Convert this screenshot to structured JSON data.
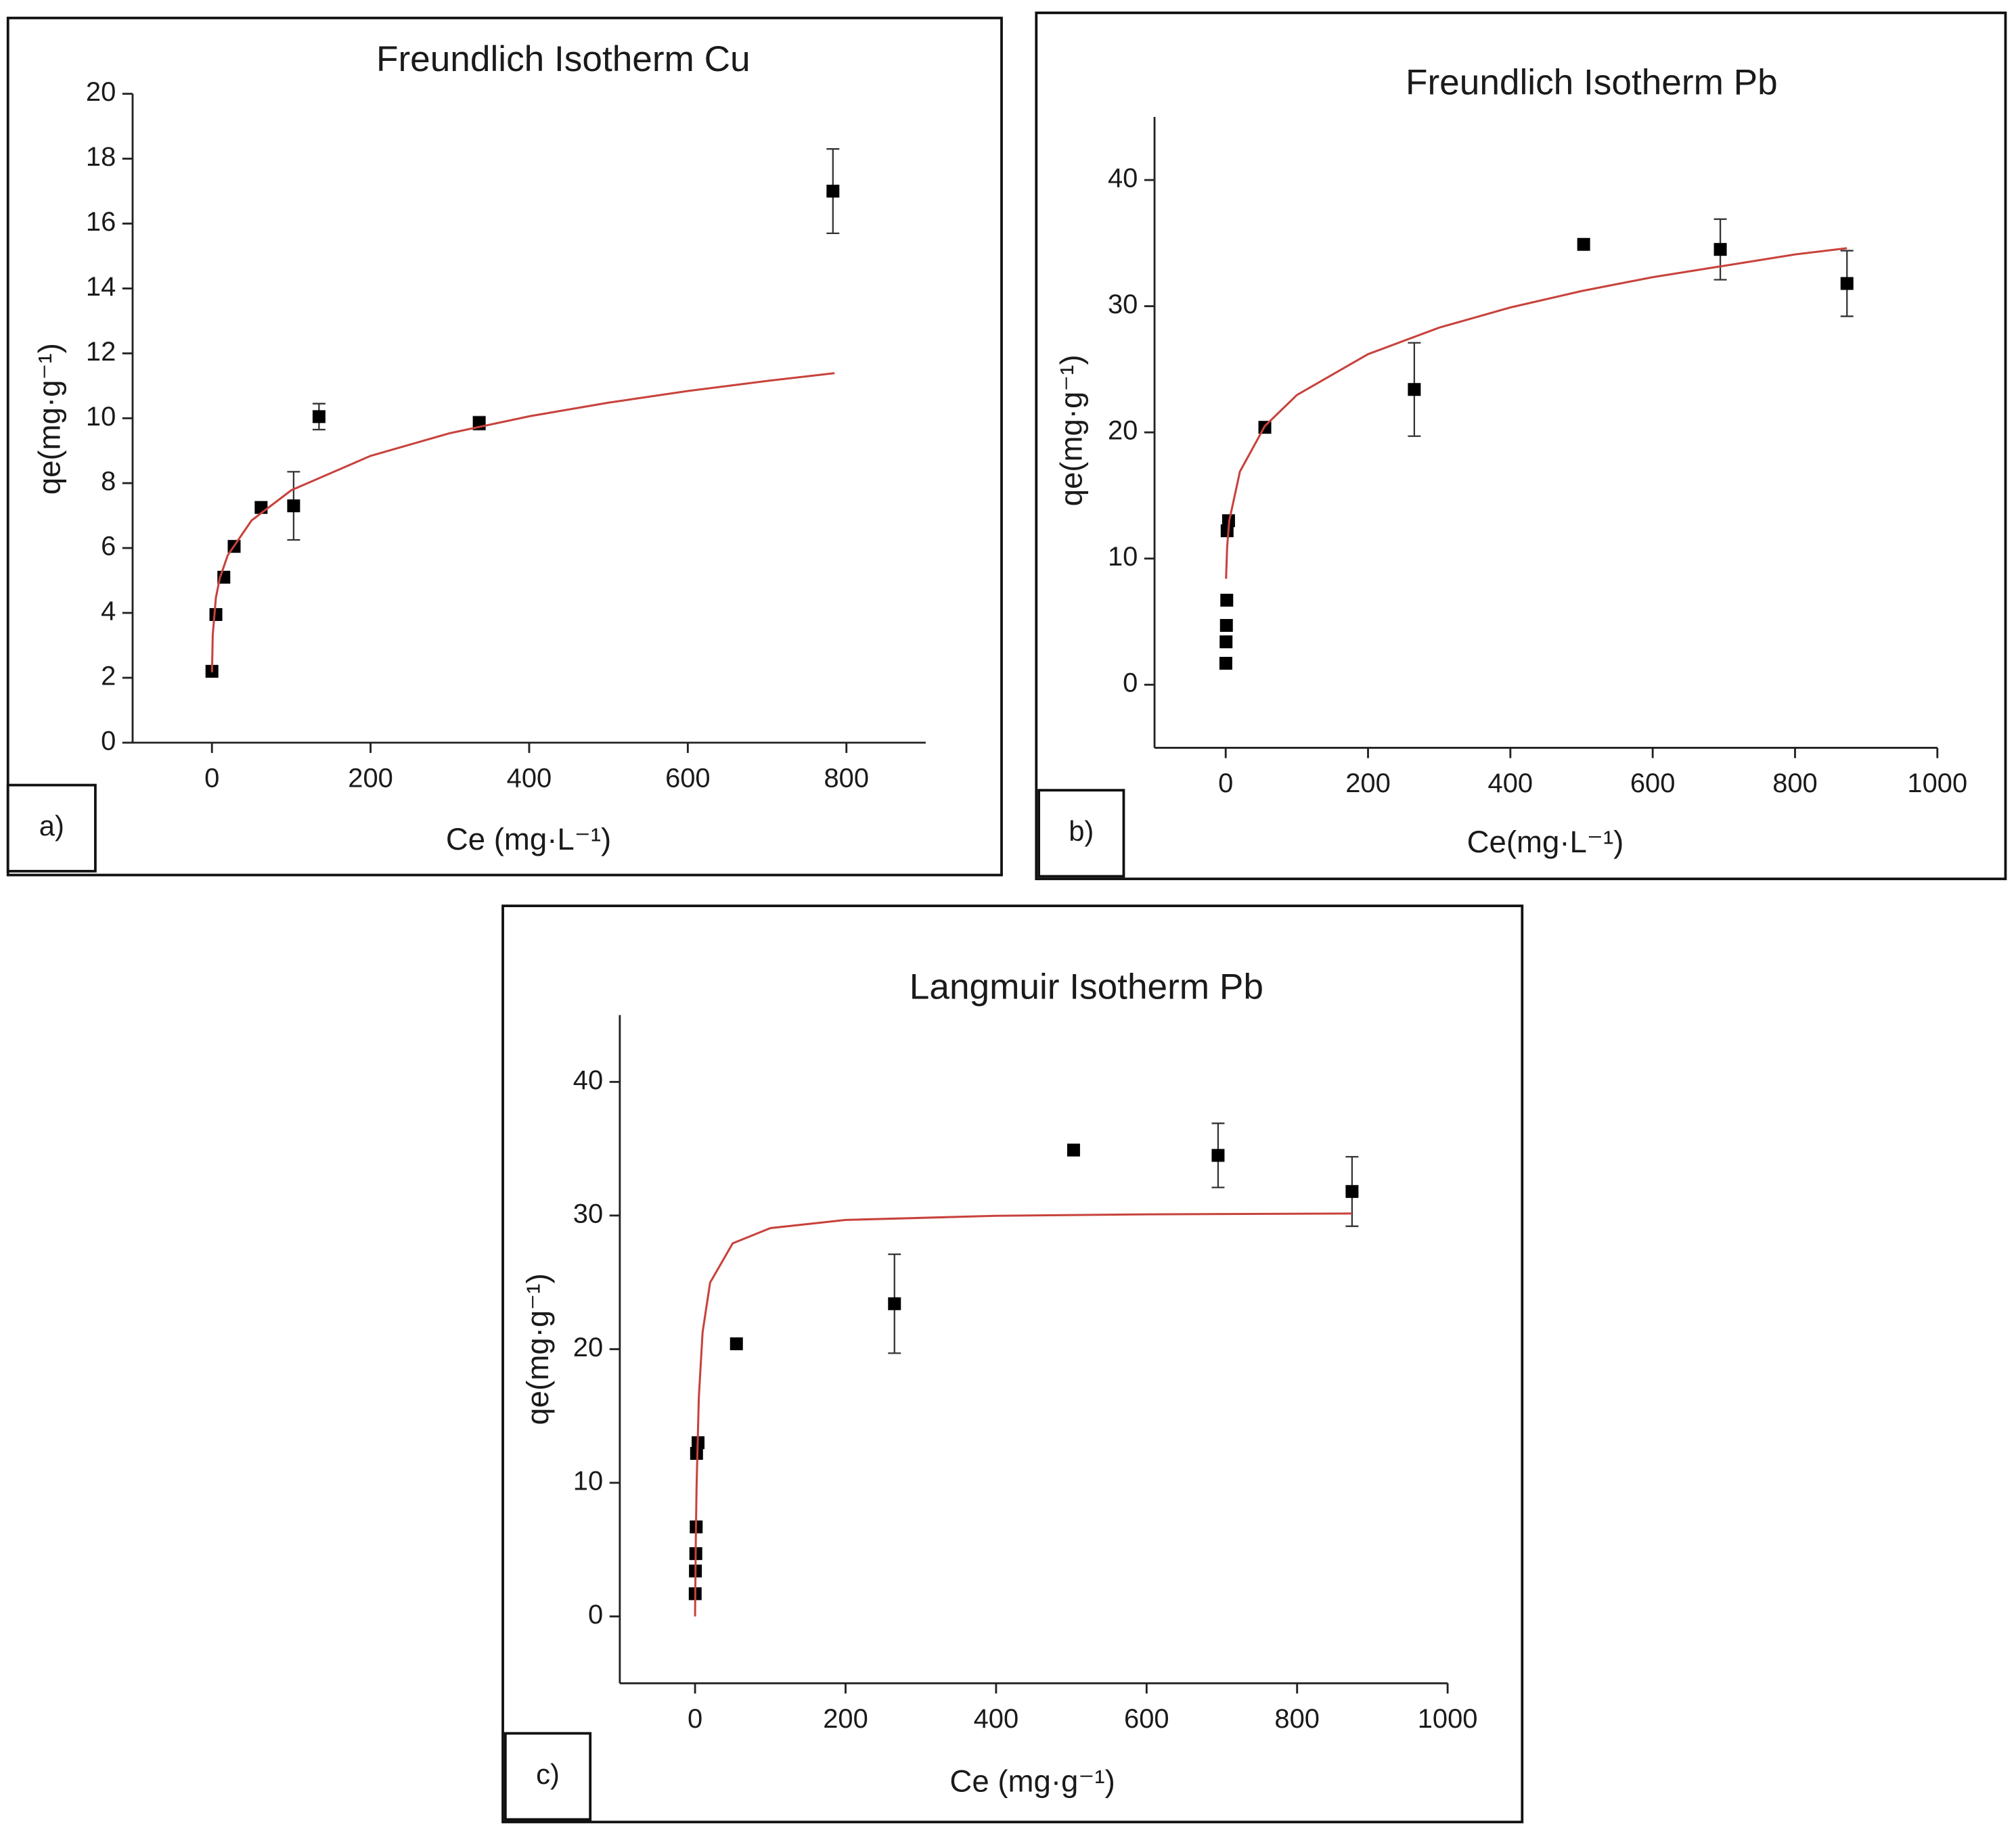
{
  "chart_data": [
    {
      "type": "scatter",
      "title": "Freundlich Isotherm Cu",
      "panel_label": "a)",
      "xlabel": "Ce (mg·L⁻¹)",
      "ylabel": "qe(mg·g⁻¹)",
      "xlim": [
        -100,
        900
      ],
      "ylim": [
        0,
        20
      ],
      "xticks": [
        0,
        200,
        400,
        600,
        800
      ],
      "yticks": [
        0,
        2,
        4,
        6,
        8,
        10,
        12,
        14,
        16,
        18,
        20
      ],
      "series": [
        {
          "color": "#000000",
          "x": [
            0,
            5,
            15,
            28,
            62,
            103,
            135,
            337,
            783
          ],
          "values": [
            2.2,
            3.95,
            5.1,
            6.05,
            7.25,
            7.3,
            10.05,
            9.85,
            17
          ],
          "errors": [
            null,
            null,
            null,
            null,
            null,
            1.05,
            0.4,
            0.2,
            1.3
          ]
        },
        {
          "type": "line",
          "color": "#c8423c",
          "x": [
            0.1,
            1,
            5,
            10,
            20,
            50,
            100,
            200,
            300,
            400,
            500,
            600,
            700,
            785
          ],
          "values": [
            2.17,
            3.32,
            4.47,
            5.08,
            5.78,
            6.85,
            7.78,
            8.84,
            9.54,
            10.06,
            10.48,
            10.84,
            11.15,
            11.39
          ]
        }
      ]
    },
    {
      "type": "scatter",
      "title": "Freundlich Isotherm Pb",
      "panel_label": "b)",
      "xlabel": "Ce(mg·L⁻¹)",
      "ylabel": "qe(mg·g⁻¹)",
      "xlim": [
        -100,
        1000
      ],
      "ylim": [
        -5,
        45
      ],
      "xticks": [
        0,
        200,
        400,
        600,
        800,
        1000
      ],
      "yticks": [
        0,
        10,
        20,
        30,
        40
      ],
      "series": [
        {
          "color": "#000000",
          "x": [
            0.2,
            0.5,
            1,
            1.5,
            2,
            4,
            55,
            265,
            503,
            695,
            873
          ],
          "values": [
            1.7,
            3.4,
            4.7,
            6.7,
            12.2,
            13,
            20.4,
            23.4,
            34.9,
            34.5,
            31.8
          ],
          "errors": [
            null,
            null,
            null,
            null,
            null,
            null,
            null,
            3.7,
            null,
            2.4,
            2.6
          ]
        },
        {
          "type": "line",
          "color": "#c8423c",
          "x": [
            0.5,
            2,
            5,
            20,
            55,
            100,
            200,
            300,
            400,
            500,
            600,
            700,
            800,
            873
          ],
          "values": [
            8.4,
            10.9,
            13,
            16.9,
            20.5,
            22.96,
            26.2,
            28.3,
            29.9,
            31.2,
            32.3,
            33.2,
            34.1,
            34.6
          ]
        }
      ]
    },
    {
      "type": "scatter",
      "title": "Langmuir Isotherm Pb",
      "panel_label": "c)",
      "xlabel": "Ce (mg·g⁻¹)",
      "ylabel": "qe(mg·g⁻¹)",
      "xlim": [
        -100,
        1000
      ],
      "ylim": [
        -5,
        45
      ],
      "xticks": [
        0,
        200,
        400,
        600,
        800,
        1000
      ],
      "yticks": [
        0,
        10,
        20,
        30,
        40
      ],
      "series": [
        {
          "color": "#000000",
          "x": [
            0.2,
            0.5,
            1,
            1.5,
            2,
            4,
            55,
            265,
            503,
            695,
            873
          ],
          "values": [
            1.7,
            3.4,
            4.7,
            6.7,
            12.2,
            13,
            20.4,
            23.4,
            34.9,
            34.5,
            31.8
          ],
          "errors": [
            null,
            null,
            null,
            null,
            null,
            null,
            null,
            3.7,
            null,
            2.4,
            2.6
          ]
        },
        {
          "type": "line",
          "color": "#c8423c",
          "x": [
            0,
            1,
            2,
            5,
            10,
            20,
            50,
            100,
            200,
            400,
            600,
            873
          ],
          "values": [
            0,
            5.77,
            9.69,
            16.37,
            21.26,
            24.98,
            27.92,
            29.06,
            29.67,
            29.98,
            30.09,
            30.15
          ]
        }
      ]
    }
  ]
}
